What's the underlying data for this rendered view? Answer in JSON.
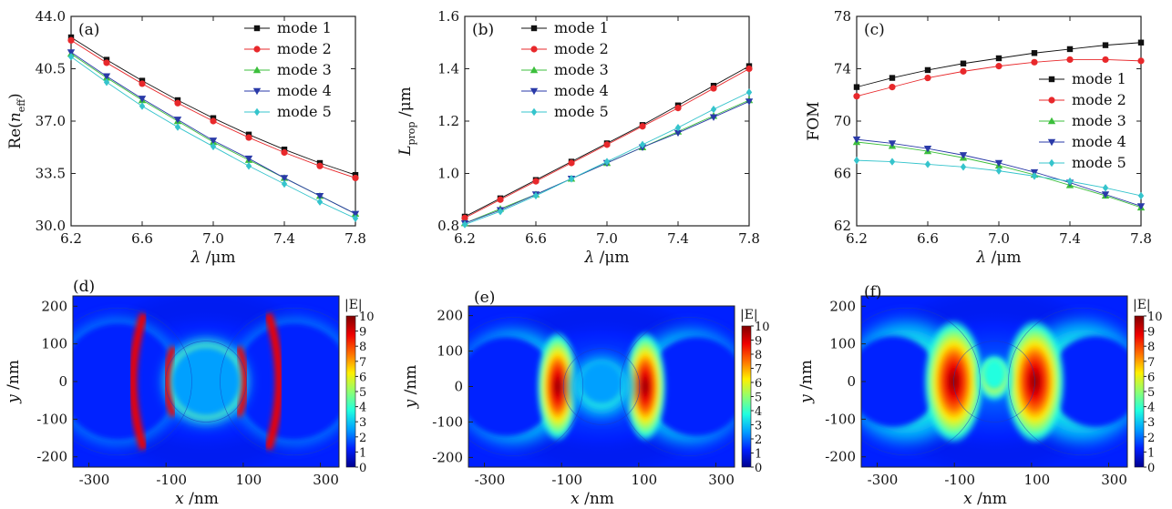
{
  "chart_data": [
    {
      "type": "line",
      "panel": "(a)",
      "ylabel": {
        "base": "Re(",
        "italic": "n",
        "sub": "eff",
        "tail": ")"
      },
      "xlabel": {
        "italic": "λ",
        "text": " /μm"
      },
      "x": [
        6.2,
        6.4,
        6.6,
        6.8,
        7.0,
        7.2,
        7.4,
        7.6,
        7.8
      ],
      "xlim": [
        6.2,
        7.8
      ],
      "ylim": [
        30.0,
        44.0
      ],
      "xticks": [
        "6.2",
        "6.6",
        "7.0",
        "7.4",
        "7.8"
      ],
      "yticks": [
        "30.0",
        "33.5",
        "37.0",
        "40.5",
        "44.0"
      ],
      "series": [
        {
          "name": "mode 1",
          "values": [
            42.6,
            41.1,
            39.7,
            38.4,
            37.2,
            36.1,
            35.1,
            34.2,
            33.4
          ]
        },
        {
          "name": "mode 2",
          "values": [
            42.4,
            40.9,
            39.5,
            38.2,
            37.0,
            35.9,
            34.9,
            34.0,
            33.2
          ]
        },
        {
          "name": "mode 3",
          "values": [
            41.5,
            39.9,
            38.4,
            37.0,
            35.6,
            34.4,
            33.2,
            32.0,
            30.8
          ]
        },
        {
          "name": "mode 4",
          "values": [
            41.6,
            40.0,
            38.5,
            37.1,
            35.7,
            34.5,
            33.2,
            32.0,
            30.8
          ]
        },
        {
          "name": "mode 5",
          "values": [
            41.3,
            39.6,
            38.0,
            36.6,
            35.3,
            34.0,
            32.8,
            31.6,
            30.5
          ]
        }
      ],
      "legend_position": "top-right",
      "grid": false
    },
    {
      "type": "line",
      "panel": "(b)",
      "ylabel": {
        "base": "",
        "italic": "L",
        "sub": "prop",
        "tail": " /μm"
      },
      "xlabel": {
        "italic": "λ",
        "text": " /μm"
      },
      "x": [
        6.2,
        6.4,
        6.6,
        6.8,
        7.0,
        7.2,
        7.4,
        7.6,
        7.8
      ],
      "xlim": [
        6.2,
        7.8
      ],
      "ylim": [
        0.8,
        1.6
      ],
      "xticks": [
        "6.2",
        "6.6",
        "7.0",
        "7.4",
        "7.8"
      ],
      "yticks": [
        "0.8",
        "1.0",
        "1.2",
        "1.4",
        "1.6"
      ],
      "series": [
        {
          "name": "mode 1",
          "values": [
            0.835,
            0.905,
            0.975,
            1.045,
            1.115,
            1.185,
            1.26,
            1.335,
            1.41
          ]
        },
        {
          "name": "mode 2",
          "values": [
            0.83,
            0.9,
            0.97,
            1.04,
            1.11,
            1.18,
            1.25,
            1.325,
            1.4
          ]
        },
        {
          "name": "mode 3",
          "values": [
            0.81,
            0.865,
            0.92,
            0.98,
            1.04,
            1.1,
            1.16,
            1.22,
            1.28
          ]
        },
        {
          "name": "mode 4",
          "values": [
            0.81,
            0.86,
            0.92,
            0.98,
            1.04,
            1.1,
            1.155,
            1.215,
            1.275
          ]
        },
        {
          "name": "mode 5",
          "values": [
            0.805,
            0.855,
            0.915,
            0.98,
            1.045,
            1.11,
            1.175,
            1.245,
            1.31
          ]
        }
      ],
      "legend_position": "top-left",
      "grid": false
    },
    {
      "type": "line",
      "panel": "(c)",
      "ylabel": {
        "base": "FOM",
        "italic": "",
        "sub": "",
        "tail": ""
      },
      "xlabel": {
        "italic": "λ",
        "text": " /μm"
      },
      "x": [
        6.2,
        6.4,
        6.6,
        6.8,
        7.0,
        7.2,
        7.4,
        7.6,
        7.8
      ],
      "xlim": [
        6.2,
        7.8
      ],
      "ylim": [
        62,
        78
      ],
      "xticks": [
        "6.2",
        "6.6",
        "7.0",
        "7.4",
        "7.8"
      ],
      "yticks": [
        "62",
        "66",
        "70",
        "74",
        "78"
      ],
      "series": [
        {
          "name": "mode 1",
          "values": [
            72.6,
            73.3,
            73.9,
            74.4,
            74.8,
            75.2,
            75.5,
            75.8,
            76.0
          ]
        },
        {
          "name": "mode 2",
          "values": [
            71.9,
            72.6,
            73.3,
            73.8,
            74.2,
            74.5,
            74.7,
            74.7,
            74.6
          ]
        },
        {
          "name": "mode 3",
          "values": [
            68.4,
            68.1,
            67.7,
            67.2,
            66.6,
            65.9,
            65.1,
            64.3,
            63.4
          ]
        },
        {
          "name": "mode 4",
          "values": [
            68.6,
            68.3,
            67.9,
            67.4,
            66.8,
            66.1,
            65.3,
            64.4,
            63.5
          ]
        },
        {
          "name": "mode 5",
          "values": [
            67.0,
            66.9,
            66.7,
            66.5,
            66.2,
            65.8,
            65.4,
            64.9,
            64.3
          ]
        }
      ],
      "legend_position": "right",
      "grid": false
    },
    {
      "type": "heatmap",
      "panel": "(d)",
      "xlabel": {
        "italic": "x",
        "text": " /nm"
      },
      "ylabel": {
        "italic": "y",
        "text": " /nm"
      },
      "xticks": [
        "-300",
        "-100",
        "100",
        "300"
      ],
      "yticks": [
        "200",
        "100",
        "0",
        "-100",
        "-200"
      ],
      "colorbar_title": "|E|",
      "colorbar_ticks": [
        "10",
        "9",
        "8",
        "7",
        "6",
        "5",
        "4",
        "3",
        "2",
        "1",
        "0"
      ],
      "field_pattern": "separated"
    },
    {
      "type": "heatmap",
      "panel": "(e)",
      "xlabel": {
        "italic": "x",
        "text": " /nm"
      },
      "ylabel": {
        "italic": "y",
        "text": " /nm"
      },
      "xticks": [
        "-300",
        "-100",
        "100",
        "300"
      ],
      "yticks": [
        "200",
        "100",
        "0",
        "-100",
        "-200"
      ],
      "colorbar_title": "|E|",
      "colorbar_ticks": [
        "10",
        "9",
        "8",
        "7",
        "6",
        "5",
        "4",
        "3",
        "2",
        "1",
        "0"
      ],
      "field_pattern": "x-shaped"
    },
    {
      "type": "heatmap",
      "panel": "(f)",
      "xlabel": {
        "italic": "x",
        "text": " /nm"
      },
      "ylabel": {
        "italic": "y",
        "text": " /nm"
      },
      "xticks": [
        "-300",
        "-100",
        "100",
        "300"
      ],
      "yticks": [
        "200",
        "100",
        "0",
        "-100",
        "-200"
      ],
      "colorbar_title": "|E|",
      "colorbar_ticks": [
        "10",
        "9",
        "8",
        "7",
        "6",
        "5",
        "4",
        "3",
        "2",
        "1",
        "0"
      ],
      "field_pattern": "merged"
    }
  ],
  "series_style": [
    {
      "color": "#111111",
      "marker": "square"
    },
    {
      "color": "#e8282b",
      "marker": "circle"
    },
    {
      "color": "#3cbf3c",
      "marker": "triangle-up"
    },
    {
      "color": "#2a3aa8",
      "marker": "triangle-down"
    },
    {
      "color": "#35c4cc",
      "marker": "diamond"
    }
  ],
  "colormap": [
    "#00008f",
    "#0020ff",
    "#00a0ff",
    "#20ffdf",
    "#8fff70",
    "#ffef00",
    "#ff7000",
    "#ef0000",
    "#800000"
  ]
}
